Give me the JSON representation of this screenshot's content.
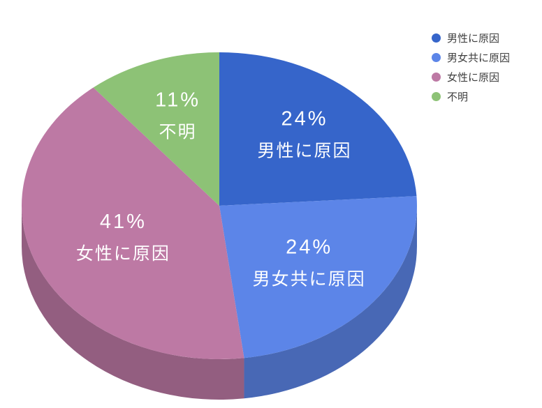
{
  "chart_data": {
    "type": "pie",
    "style": "3d",
    "title": "",
    "background": "#ffffff",
    "legend_position": "top-right",
    "direction": "clockwise",
    "start_angle_deg": 0,
    "slices": [
      {
        "label": "男性に原因",
        "value": 24,
        "display": "24%",
        "color": "#3665CA"
      },
      {
        "label": "男女共に原因",
        "value": 24,
        "display": "24%",
        "color": "#5C85E8"
      },
      {
        "label": "女性に原因",
        "value": 41,
        "display": "41%",
        "color": "#BD79A4"
      },
      {
        "label": "不明",
        "value": 11,
        "display": "11%",
        "color": "#8DC276"
      }
    ],
    "legend_entries": [
      "男性に原因",
      "男女共に原因",
      "女性に原因",
      "不明"
    ]
  }
}
